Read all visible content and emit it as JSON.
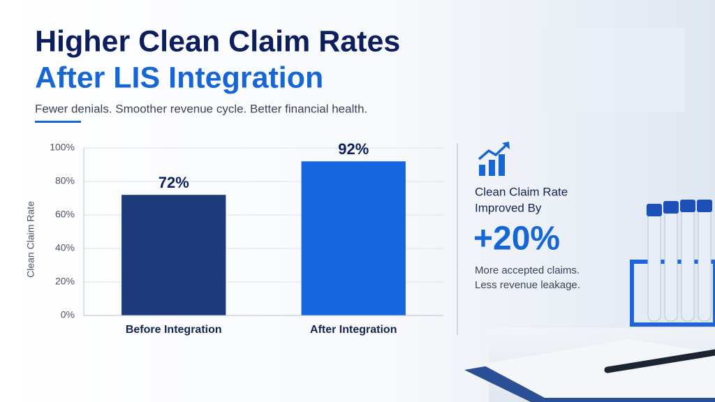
{
  "header": {
    "title_lines": [
      "Higher Clean Claim Rates",
      "After LIS Integration"
    ],
    "subtitle": "Fewer denials. Smoother revenue cycle. Better financial health."
  },
  "callout": {
    "lines": [
      "Clean Claim Rate",
      "Improved By"
    ],
    "highlight": "+20%",
    "notes": [
      "More accepted claims.",
      "Less revenue leakage."
    ]
  },
  "chart_data": {
    "type": "bar",
    "y_label": "Clean Claim Rate",
    "categories": [
      "Before Integration",
      "After Integration"
    ],
    "values": [
      72,
      92
    ],
    "value_labels": [
      "72%",
      "92%"
    ],
    "colors": [
      "#1d3a7a",
      "#1766e0"
    ],
    "ylim": [
      0,
      100
    ],
    "yticks": [
      {
        "value": 0,
        "label": "0%"
      },
      {
        "value": 20,
        "label": "20%"
      },
      {
        "value": 40,
        "label": "40%"
      },
      {
        "value": 60,
        "label": "60%"
      },
      {
        "value": 80,
        "label": "80%"
      },
      {
        "value": 100,
        "label": "100%"
      }
    ],
    "grid": true
  }
}
